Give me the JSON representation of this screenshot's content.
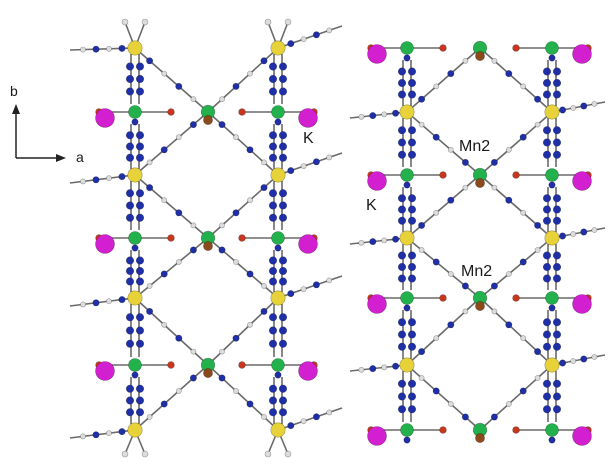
{
  "axes": {
    "b_label": "b",
    "a_label": "a"
  },
  "labels": {
    "k_left": "K",
    "k_right": "K",
    "mn2_upper": "Mn2",
    "mn2_lower": "Mn2"
  },
  "colors": {
    "yellow_node": "#e8d23a",
    "green_node": "#22b14c",
    "brown_node": "#8b4a1c",
    "blue_atom": "#1f2fa8",
    "magenta_atom": "#d21fcf",
    "red_atom": "#c8361e",
    "white_atom": "#dcdcdc",
    "bond": "#6a6a6a"
  }
}
